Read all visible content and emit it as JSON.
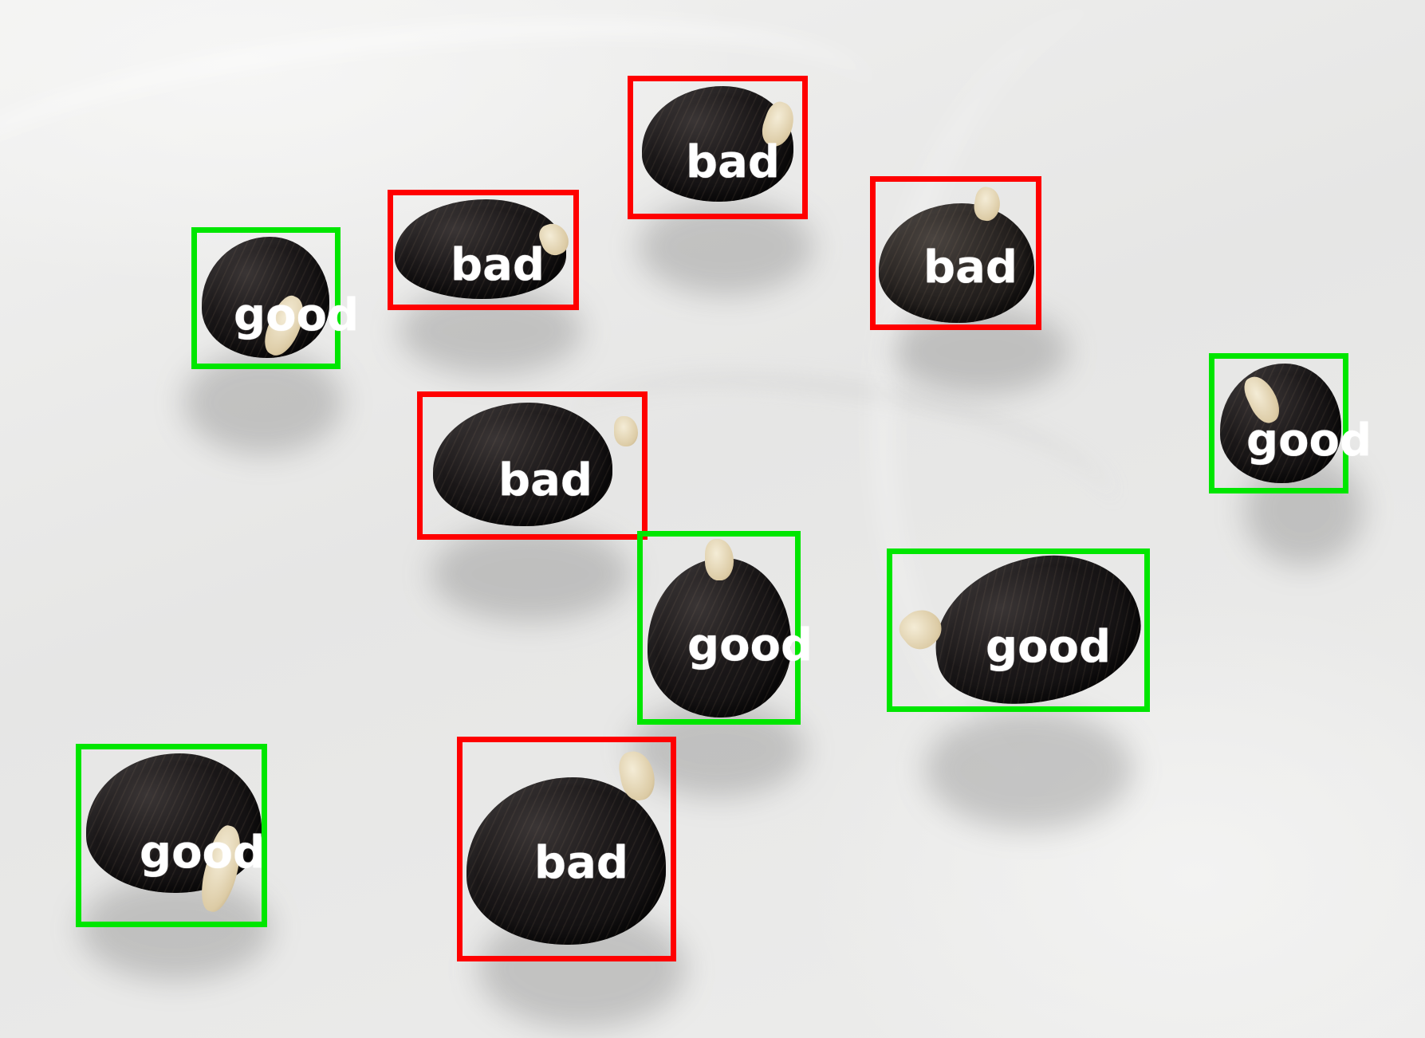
{
  "colors": {
    "bad": "#ff0000",
    "good": "#00e600",
    "label_text": "#ffffff"
  },
  "detections": [
    {
      "id": 1,
      "label": "bad"
    },
    {
      "id": 2,
      "label": "bad"
    },
    {
      "id": 3,
      "label": "bad"
    },
    {
      "id": 4,
      "label": "good"
    },
    {
      "id": 5,
      "label": "good"
    },
    {
      "id": 6,
      "label": "bad"
    },
    {
      "id": 7,
      "label": "good"
    },
    {
      "id": 8,
      "label": "good"
    },
    {
      "id": 9,
      "label": "good"
    },
    {
      "id": 10,
      "label": "bad"
    }
  ]
}
